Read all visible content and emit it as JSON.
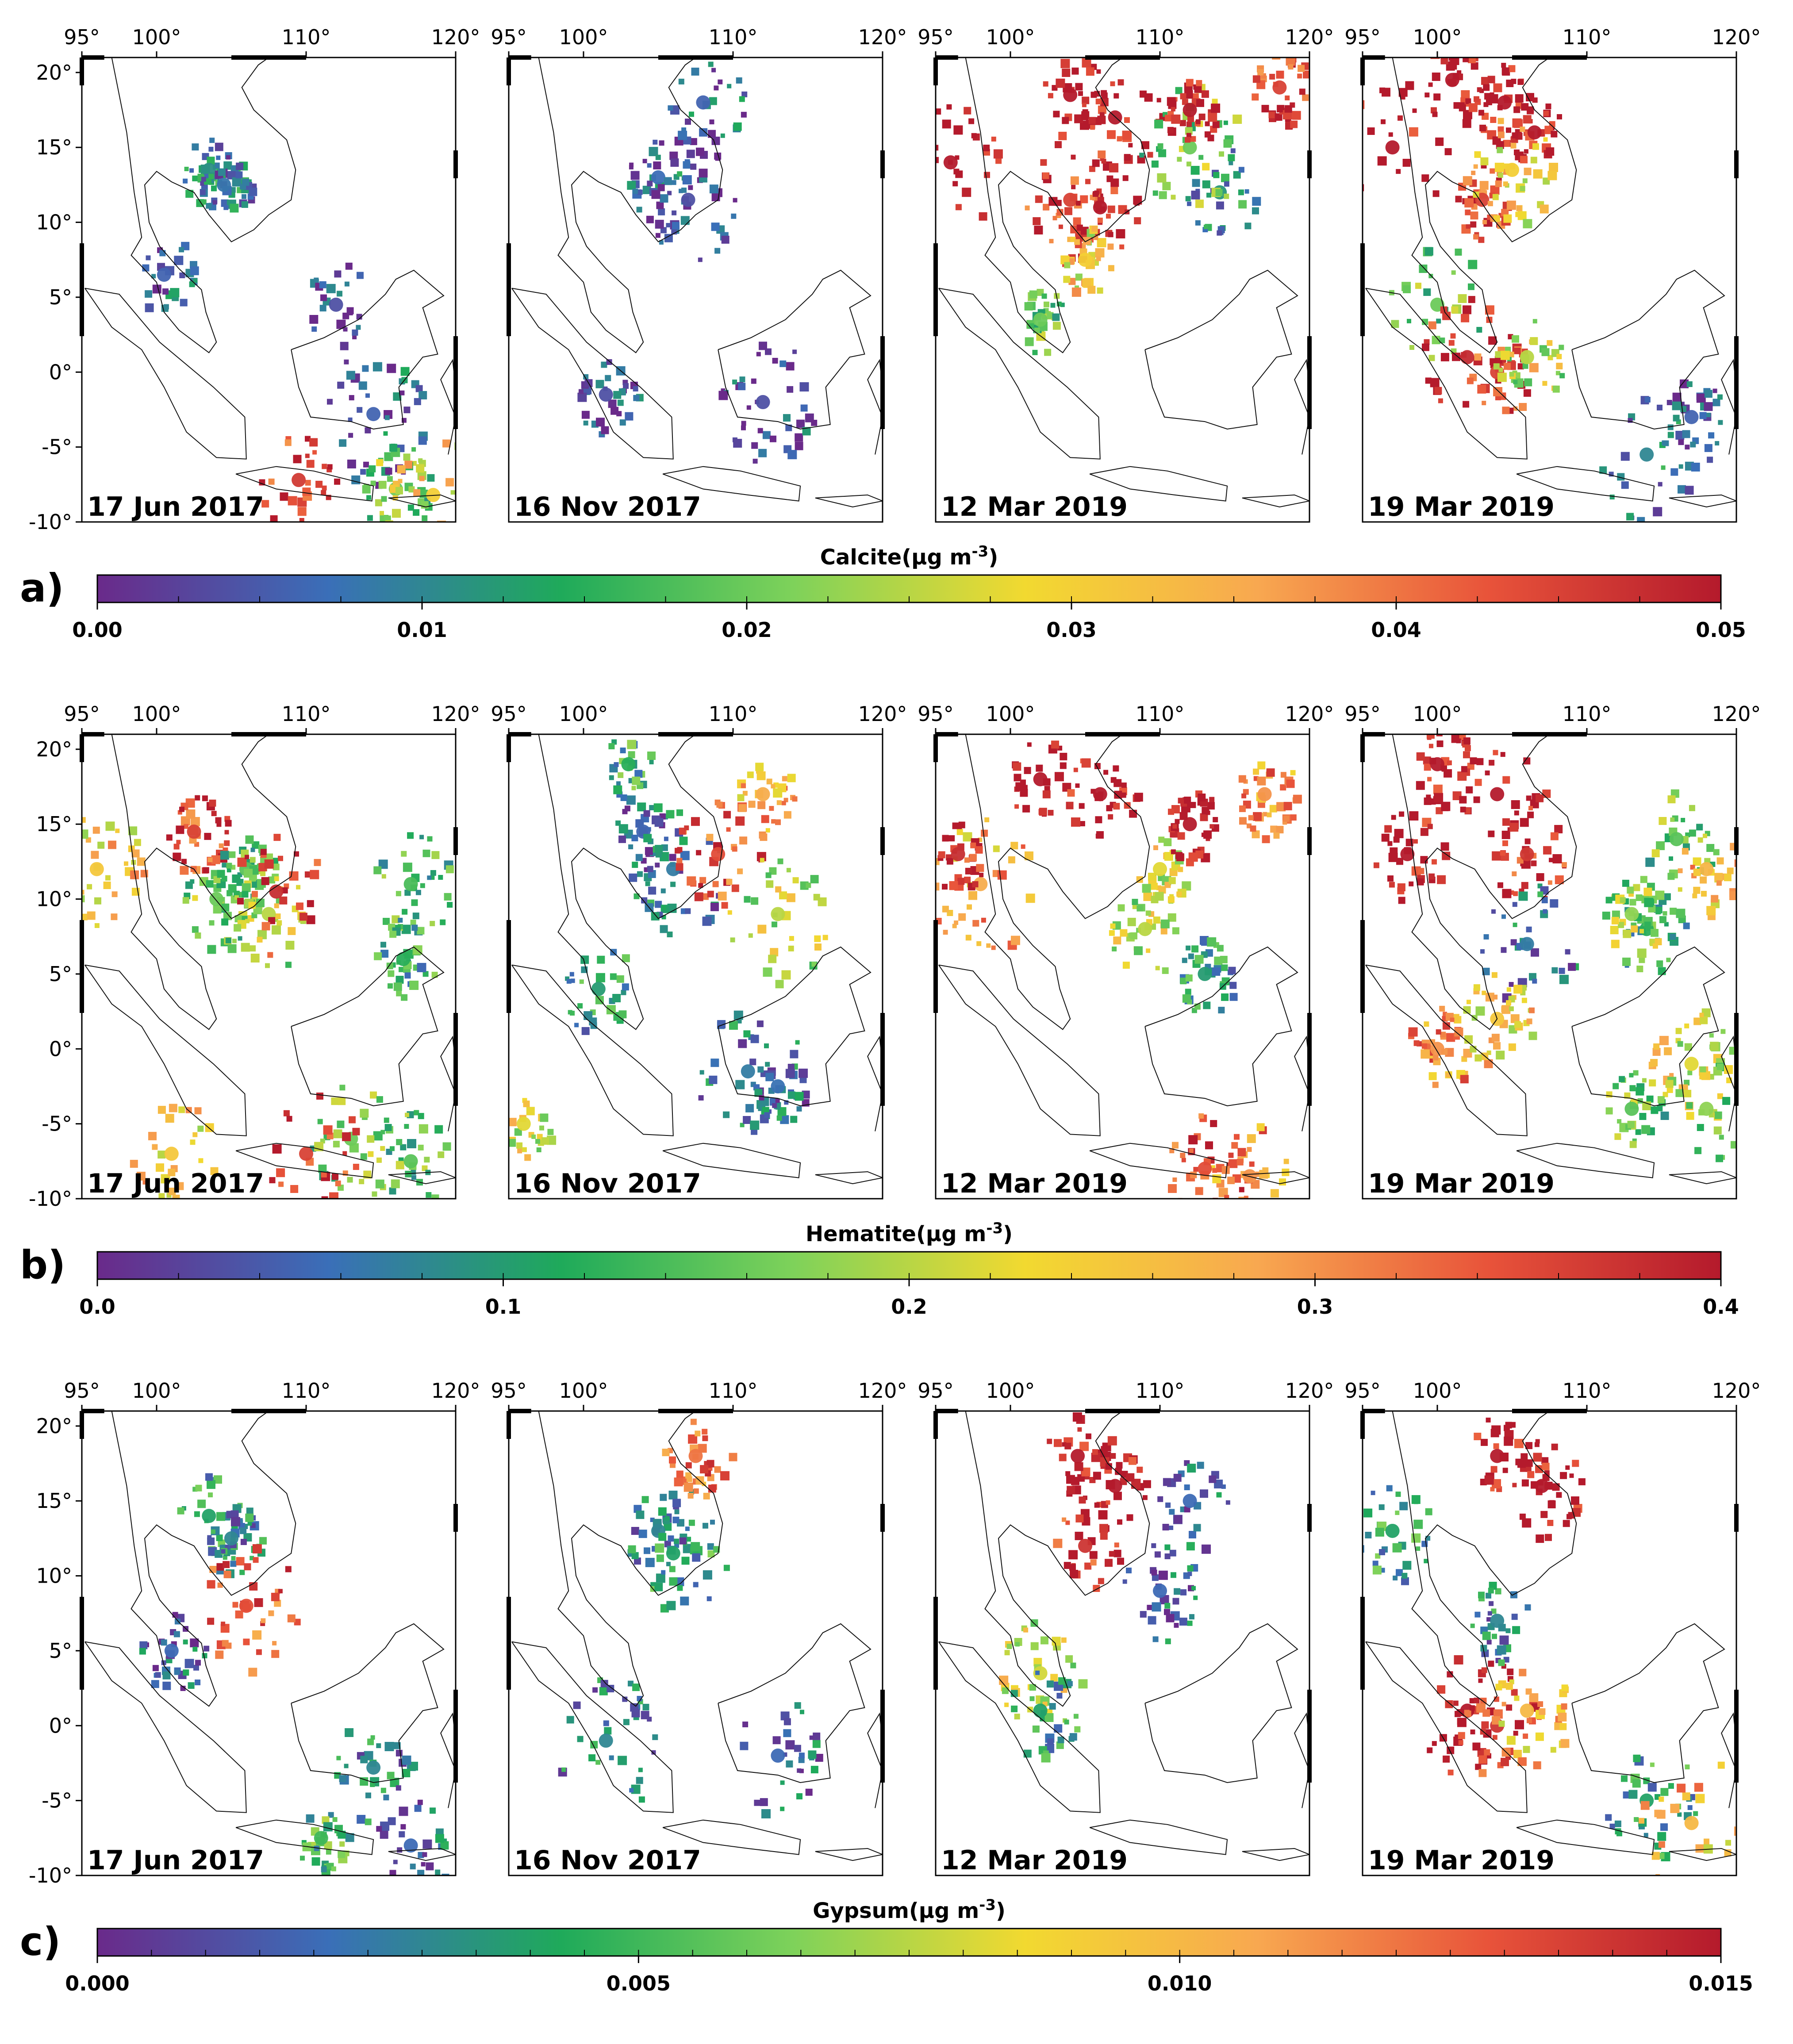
{
  "chart_data": [
    {
      "type": "heatmap",
      "panel_label": "a)",
      "mineral": "Calcite",
      "units": "(μg m-3)",
      "colorbar_title": "Calcite(μg m",
      "colorbar_superscript": "-3",
      "colorbar_suffix": ")",
      "colorbar_range": [
        0.0,
        0.05
      ],
      "colorbar_ticks": [
        "0.00",
        "0.01",
        "0.02",
        "0.03",
        "0.04",
        "0.05"
      ],
      "maps": [
        {
          "date": "17 Jun 2017",
          "hotspots": [
            [
              103.5,
              13.5,
              0.011
            ],
            [
              104.5,
              12.5,
              0.008
            ],
            [
              100.5,
              6.5,
              0.006
            ],
            [
              112,
              4.5,
              0.004
            ],
            [
              114.5,
              -2.8,
              0.006
            ],
            [
              109.5,
              -7.2,
              0.046
            ],
            [
              116,
              -7.8,
              0.02
            ],
            [
              118.5,
              -8.2,
              0.03
            ]
          ]
        },
        {
          "date": "16 Nov 2017",
          "hotspots": [
            [
              105,
              13,
              0.007
            ],
            [
              107,
              11.5,
              0.004
            ],
            [
              112,
              -2,
              0.004
            ],
            [
              101.5,
              -1.5,
              0.004
            ],
            [
              108,
              18,
              0.006
            ]
          ]
        },
        {
          "date": "12 Mar 2019",
          "hotspots": [
            [
              104,
              18.5,
              0.05
            ],
            [
              107,
              17,
              0.05
            ],
            [
              96,
              14,
              0.05
            ],
            [
              104,
              11.5,
              0.045
            ],
            [
              106,
              11,
              0.05
            ],
            [
              102,
              3.5,
              0.02
            ],
            [
              105,
              7.5,
              0.03
            ],
            [
              114,
              12,
              0.012
            ],
            [
              112,
              15,
              0.02
            ],
            [
              118,
              19,
              0.045
            ],
            [
              112,
              17.5,
              0.05
            ]
          ]
        },
        {
          "date": "19 Mar 2019",
          "hotspots": [
            [
              101,
              19.5,
              0.05
            ],
            [
              104.5,
              18,
              0.05
            ],
            [
              106.5,
              16,
              0.05
            ],
            [
              97,
              15,
              0.05
            ],
            [
              103,
              11.5,
              0.045
            ],
            [
              100,
              4.5,
              0.02
            ],
            [
              102,
              1,
              0.048
            ],
            [
              104,
              0,
              0.045
            ],
            [
              106,
              1,
              0.025
            ],
            [
              114,
              -5.5,
              0.01
            ],
            [
              117,
              -3,
              0.006
            ],
            [
              105,
              13.5,
              0.03
            ]
          ]
        }
      ]
    },
    {
      "type": "heatmap",
      "panel_label": "b)",
      "mineral": "Hematite",
      "units": "(μg m-3)",
      "colorbar_title": "Hematite(μg m",
      "colorbar_superscript": "-3",
      "colorbar_suffix": ")",
      "colorbar_range": [
        0.0,
        0.4
      ],
      "colorbar_ticks": [
        "0.0",
        "0.1",
        "0.2",
        "0.3",
        "0.4"
      ],
      "maps": [
        {
          "date": "17 Jun 2017",
          "hotspots": [
            [
              102.5,
              14.5,
              0.36
            ],
            [
              96,
              12,
              0.25
            ],
            [
              104,
              10,
              0.16
            ],
            [
              106,
              12,
              0.15
            ],
            [
              107.5,
              9,
              0.2
            ],
            [
              117,
              11,
              0.14
            ],
            [
              116.5,
              6,
              0.12
            ],
            [
              113,
              -6,
              0.16
            ],
            [
              117,
              -7.5,
              0.15
            ],
            [
              110,
              -7,
              0.36
            ],
            [
              101,
              -7,
              0.25
            ],
            [
              108,
              10.5,
              0.38
            ]
          ]
        },
        {
          "date": "16 Nov 2017",
          "hotspots": [
            [
              104,
              14.5,
              0.05
            ],
            [
              106,
              12,
              0.07
            ],
            [
              112,
              17,
              0.28
            ],
            [
              109,
              13,
              0.35
            ],
            [
              113,
              9,
              0.2
            ],
            [
              111,
              -1.5,
              0.07
            ],
            [
              113,
              -2.5,
              0.06
            ],
            [
              101,
              4,
              0.1
            ],
            [
              103,
              19,
              0.12
            ],
            [
              96,
              -5,
              0.22
            ]
          ]
        },
        {
          "date": "12 Mar 2019",
          "hotspots": [
            [
              102,
              18,
              0.4
            ],
            [
              106,
              17,
              0.4
            ],
            [
              98,
              11,
              0.28
            ],
            [
              96.5,
              13,
              0.38
            ],
            [
              110,
              12,
              0.22
            ],
            [
              109,
              8,
              0.2
            ],
            [
              117,
              17,
              0.3
            ],
            [
              112,
              15,
              0.4
            ],
            [
              113,
              5,
              0.1
            ],
            [
              116,
              -8.5,
              0.3
            ],
            [
              113,
              -8,
              0.35
            ]
          ]
        },
        {
          "date": "19 Mar 2019",
          "hotspots": [
            [
              100,
              19,
              0.4
            ],
            [
              104,
              17,
              0.4
            ],
            [
              98,
              13,
              0.4
            ],
            [
              106,
              13,
              0.37
            ],
            [
              106,
              7,
              0.07
            ],
            [
              116,
              14,
              0.15
            ],
            [
              118,
              12,
              0.27
            ],
            [
              114,
              8,
              0.12
            ],
            [
              100,
              0,
              0.3
            ],
            [
              104,
              2,
              0.25
            ],
            [
              113,
              -4,
              0.15
            ],
            [
              117,
              -1,
              0.22
            ],
            [
              118,
              -4,
              0.18
            ],
            [
              113,
              9,
              0.18
            ]
          ]
        }
      ]
    },
    {
      "type": "heatmap",
      "panel_label": "c)",
      "mineral": "Gypsum",
      "units": "(μg m-3)",
      "colorbar_title": "Gypsum(μg m",
      "colorbar_superscript": "-3",
      "colorbar_suffix": ")",
      "colorbar_range": [
        0.0,
        0.015
      ],
      "colorbar_ticks": [
        "0.000",
        "0.005",
        "0.010",
        "0.015"
      ],
      "maps": [
        {
          "date": "17 Jun 2017",
          "hotspots": [
            [
              103.5,
              14,
              0.004
            ],
            [
              105,
              12.5,
              0.003
            ],
            [
              106,
              8,
              0.013
            ],
            [
              101,
              5,
              0.002
            ],
            [
              114.5,
              -2.8,
              0.003
            ],
            [
              111,
              -7.5,
              0.005
            ],
            [
              117,
              -8,
              0.002
            ]
          ]
        },
        {
          "date": "16 Nov 2017",
          "hotspots": [
            [
              105,
              13,
              0.003
            ],
            [
              106,
              11.5,
              0.004
            ],
            [
              113,
              -2,
              0.002
            ],
            [
              101.5,
              -1,
              0.003
            ],
            [
              107.5,
              18,
              0.012
            ]
          ]
        },
        {
          "date": "12 Mar 2019",
          "hotspots": [
            [
              104.5,
              18,
              0.015
            ],
            [
              107,
              16,
              0.015
            ],
            [
              105,
              12,
              0.014
            ],
            [
              110,
              9,
              0.002
            ],
            [
              102,
              3.5,
              0.008
            ],
            [
              102,
              1,
              0.004
            ],
            [
              112,
              15,
              0.002
            ]
          ]
        },
        {
          "date": "19 Mar 2019",
          "hotspots": [
            [
              104,
              18,
              0.015
            ],
            [
              107,
              16,
              0.015
            ],
            [
              97,
              13,
              0.004
            ],
            [
              102,
              1,
              0.015
            ],
            [
              104,
              0,
              0.014
            ],
            [
              106,
              1,
              0.01
            ],
            [
              104,
              7,
              0.003
            ],
            [
              114,
              -5,
              0.004
            ],
            [
              117,
              -6.5,
              0.01
            ]
          ]
        }
      ]
    }
  ],
  "map_axes": {
    "lon_range": [
      95,
      120
    ],
    "lat_range": [
      -10,
      21
    ],
    "lon_ticks": [
      "95°",
      "100°",
      "110°",
      "120°"
    ],
    "lat_ticks": [
      "20°",
      "15°",
      "10°",
      "5°",
      "0°",
      "-5°",
      "-10°"
    ]
  },
  "colormap": [
    "#6a2a8a",
    "#3a6fb8",
    "#1faa5a",
    "#7ed25a",
    "#f2d930",
    "#f8a850",
    "#e8533a",
    "#b41a2c"
  ]
}
